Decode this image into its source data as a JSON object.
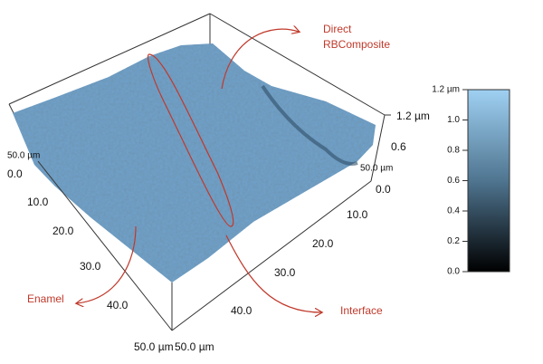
{
  "annotations": {
    "composite": [
      "Direct",
      "RBComposite"
    ],
    "enamel": "Enamel",
    "interface": "Interface"
  },
  "left_axis": {
    "labels": [
      "0.0",
      "10.0",
      "20.0",
      "30.0",
      "40.0",
      "50.0 µm"
    ],
    "height_label": "50.0 µm"
  },
  "right_axis": {
    "labels": [
      "0.0",
      "10.0",
      "20.0",
      "30.0",
      "40.0",
      "50.0 µm"
    ],
    "height_label": "50.0 µm"
  },
  "z_axis": {
    "labels": [
      "0.6",
      "1.2 µm"
    ]
  },
  "colorbar": {
    "labels": [
      "0.0",
      "0.2",
      "0.4",
      "0.6",
      "0.8",
      "1.0",
      "1.2 µm"
    ]
  }
}
